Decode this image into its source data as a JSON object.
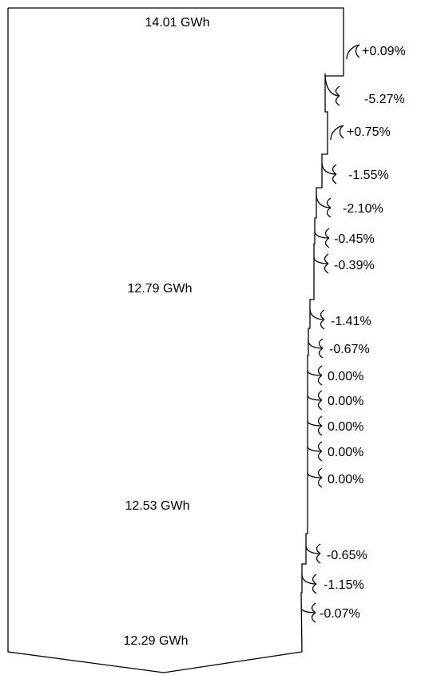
{
  "chart_data": {
    "type": "sankey",
    "title": "",
    "levels": [
      {
        "label": "14.01 GWh"
      },
      {
        "label": "12.79 GWh"
      },
      {
        "label": "12.53 GWh"
      },
      {
        "label": "12.29 GWh"
      }
    ],
    "changes": [
      {
        "label": "+0.09%",
        "value": 0.09
      },
      {
        "label": "-5.27%",
        "value": -5.27
      },
      {
        "label": "+0.75%",
        "value": 0.75
      },
      {
        "label": "-1.55%",
        "value": -1.55
      },
      {
        "label": "-2.10%",
        "value": -2.1
      },
      {
        "label": "-0.45%",
        "value": -0.45
      },
      {
        "label": "-0.39%",
        "value": -0.39
      },
      {
        "label": "-1.41%",
        "value": -1.41
      },
      {
        "label": "-0.67%",
        "value": -0.67
      },
      {
        "label": "0.00%",
        "value": 0.0
      },
      {
        "label": "0.00%",
        "value": 0.0
      },
      {
        "label": "0.00%",
        "value": 0.0
      },
      {
        "label": "0.00%",
        "value": 0.0
      },
      {
        "label": "0.00%",
        "value": 0.0
      },
      {
        "label": "-0.65%",
        "value": -0.65
      },
      {
        "label": "-1.15%",
        "value": -1.15
      },
      {
        "label": "-0.07%",
        "value": -0.07
      }
    ]
  }
}
